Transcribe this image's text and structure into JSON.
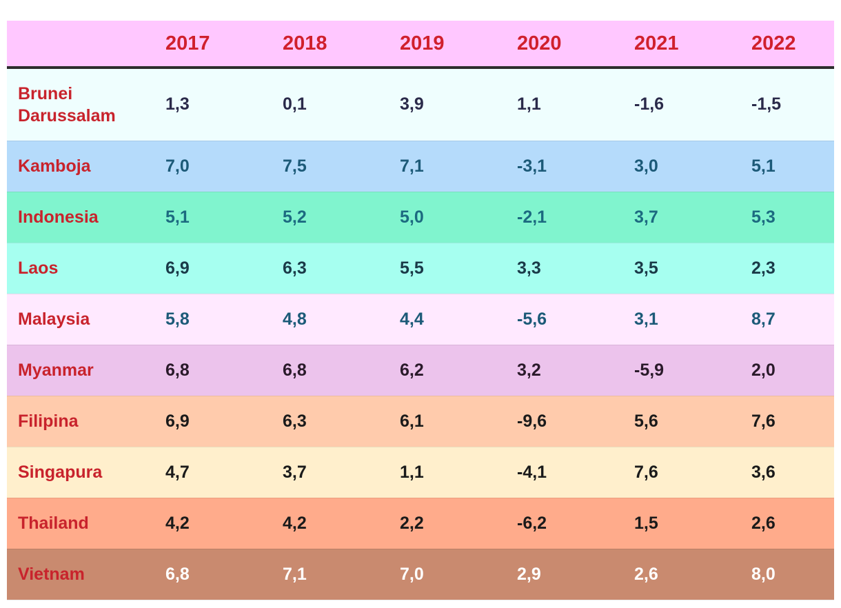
{
  "chart_data": {
    "type": "table",
    "columns": [
      "",
      "2017",
      "2018",
      "2019",
      "2020",
      "2021",
      "2022"
    ],
    "rows": [
      {
        "country": "Brunei Darussalam",
        "values": [
          "1,3",
          "0,1",
          "3,9",
          "1,1",
          "-1,6",
          "-1,5"
        ],
        "bg": "#effefe",
        "fg": "#2a2a4a"
      },
      {
        "country": "Kamboja",
        "values": [
          "7,0",
          "7,5",
          "7,1",
          "-3,1",
          "3,0",
          "5,1"
        ],
        "bg": "#b5dbfb",
        "fg": "#1c5a78"
      },
      {
        "country": "Indonesia",
        "values": [
          "5,1",
          "5,2",
          "5,0",
          "-2,1",
          "3,7",
          "5,3"
        ],
        "bg": "#80f4ce",
        "fg": "#1c6a80"
      },
      {
        "country": "Laos",
        "values": [
          "6,9",
          "6,3",
          "5,5",
          "3,3",
          "3,5",
          "2,3"
        ],
        "bg": "#a6fff0",
        "fg": "#1a3a48"
      },
      {
        "country": "Malaysia",
        "values": [
          "5,8",
          "4,8",
          "4,4",
          "-5,6",
          "3,1",
          "8,7"
        ],
        "bg": "#ffe9ff",
        "fg": "#1c5a78"
      },
      {
        "country": "Myanmar",
        "values": [
          "6,8",
          "6,8",
          "6,2",
          "3,2",
          "-5,9",
          "2,0"
        ],
        "bg": "#ecc3ec",
        "fg": "#2a1a2a"
      },
      {
        "country": "Filipina",
        "values": [
          "6,9",
          "6,3",
          "6,1",
          "-9,6",
          "5,6",
          "7,6"
        ],
        "bg": "#ffcbac",
        "fg": "#1a1a1a"
      },
      {
        "country": "Singapura",
        "values": [
          "4,7",
          "3,7",
          "1,1",
          "-4,1",
          "7,6",
          "3,6"
        ],
        "bg": "#ffefcc",
        "fg": "#1a1a1a"
      },
      {
        "country": "Thailand",
        "values": [
          "4,2",
          "4,2",
          "2,2",
          "-6,2",
          "1,5",
          "2,6"
        ],
        "bg": "#ffab8b",
        "fg": "#1a1a1a"
      },
      {
        "country": "Vietnam",
        "values": [
          "6,8",
          "7,1",
          "7,0",
          "2,9",
          "2,6",
          "8,0"
        ],
        "bg": "#c98a6f",
        "fg": "#ffffff"
      }
    ],
    "header_bg": "#ffc7ff",
    "header_fg": "#d0202d",
    "country_fg": "#c8232c"
  }
}
